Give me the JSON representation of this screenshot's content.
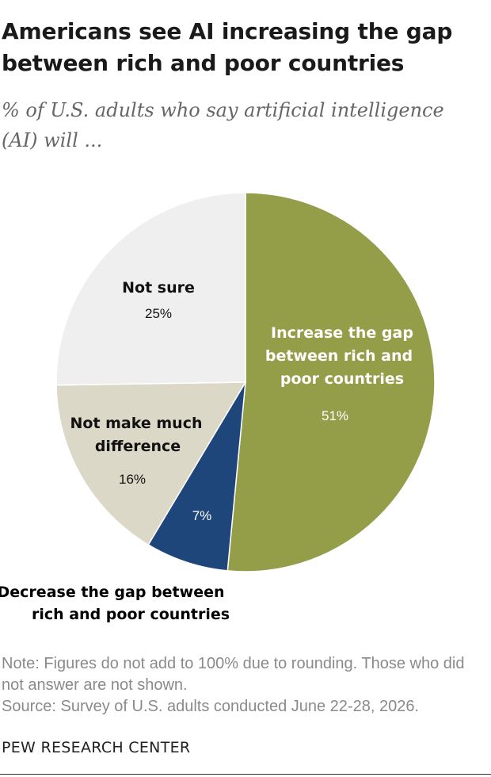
{
  "header": {
    "title": "Americans see AI increasing the gap between rich and poor countries",
    "subtitle": "% of U.S. adults who say artificial intelligence (AI) will ..."
  },
  "chart_data": {
    "type": "pie",
    "slices": [
      {
        "label": "Increase the gap between rich and poor countries",
        "value": 51,
        "value_label": "51%",
        "color": "#949d48"
      },
      {
        "label": "Decrease the gap between rich and poor countries",
        "value": 7,
        "value_label": "7%",
        "color": "#1f467a"
      },
      {
        "label": "Not make much difference",
        "value": 16,
        "value_label": "16%",
        "color": "#dcd8c8"
      },
      {
        "label": "Not sure",
        "value": 25,
        "value_label": "25%",
        "color": "#efefef"
      }
    ]
  },
  "footer": {
    "note": "Note: Figures do not add to 100% due to rounding. Those who did not answer are not shown.",
    "source": "Source: Survey of U.S. adults conducted June 22-28, 2026.",
    "organization": "PEW RESEARCH CENTER"
  }
}
